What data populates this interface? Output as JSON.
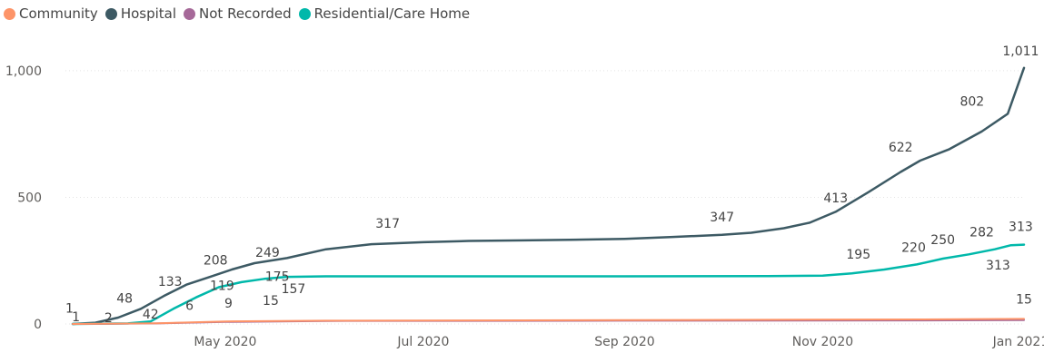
{
  "legend": {
    "items": [
      {
        "label": "Community",
        "color": "#fd9468"
      },
      {
        "label": "Hospital",
        "color": "#3d5a64"
      },
      {
        "label": "Not Recorded",
        "color": "#a66999"
      },
      {
        "label": "Residential/Care Home",
        "color": "#00b8aa"
      }
    ]
  },
  "chart_data": {
    "type": "line",
    "x_ticks": [
      "May 2020",
      "Jul 2020",
      "Sep 2020",
      "Nov 2020",
      "Jan 2021"
    ],
    "y_ticks": [
      "0",
      "500",
      "1,000"
    ],
    "ylim": [
      0,
      1100
    ],
    "xlim": [
      "2020-03-15",
      "2021-01-02"
    ],
    "grid": true,
    "series": [
      {
        "name": "Hospital",
        "color": "#3d5a64",
        "points": [
          [
            "2020-03-15",
            0
          ],
          [
            "2020-03-22",
            5
          ],
          [
            "2020-03-29",
            25
          ],
          [
            "2020-04-05",
            60
          ],
          [
            "2020-04-12",
            110
          ],
          [
            "2020-04-19",
            155
          ],
          [
            "2020-04-26",
            185
          ],
          [
            "2020-05-03",
            215
          ],
          [
            "2020-05-10",
            240
          ],
          [
            "2020-05-20",
            260
          ],
          [
            "2020-06-01",
            295
          ],
          [
            "2020-06-15",
            315
          ],
          [
            "2020-07-01",
            323
          ],
          [
            "2020-07-15",
            328
          ],
          [
            "2020-08-01",
            330
          ],
          [
            "2020-08-15",
            332
          ],
          [
            "2020-09-01",
            336
          ],
          [
            "2020-09-15",
            343
          ],
          [
            "2020-10-01",
            352
          ],
          [
            "2020-10-10",
            360
          ],
          [
            "2020-10-20",
            378
          ],
          [
            "2020-10-28",
            400
          ],
          [
            "2020-11-05",
            443
          ],
          [
            "2020-11-15",
            520
          ],
          [
            "2020-11-25",
            600
          ],
          [
            "2020-12-01",
            645
          ],
          [
            "2020-12-10",
            690
          ],
          [
            "2020-12-20",
            760
          ],
          [
            "2020-12-28",
            830
          ],
          [
            "2021-01-02",
            1011
          ]
        ]
      },
      {
        "name": "Residential/Care Home",
        "color": "#00b8aa",
        "points": [
          [
            "2020-03-15",
            0
          ],
          [
            "2020-04-01",
            2
          ],
          [
            "2020-04-08",
            10
          ],
          [
            "2020-04-15",
            60
          ],
          [
            "2020-04-22",
            105
          ],
          [
            "2020-04-29",
            145
          ],
          [
            "2020-05-06",
            165
          ],
          [
            "2020-05-13",
            178
          ],
          [
            "2020-05-20",
            186
          ],
          [
            "2020-06-01",
            188
          ],
          [
            "2020-07-01",
            188
          ],
          [
            "2020-09-01",
            188
          ],
          [
            "2020-10-15",
            189
          ],
          [
            "2020-11-01",
            191
          ],
          [
            "2020-11-10",
            200
          ],
          [
            "2020-11-20",
            215
          ],
          [
            "2020-11-30",
            235
          ],
          [
            "2020-12-08",
            258
          ],
          [
            "2020-12-16",
            275
          ],
          [
            "2020-12-24",
            295
          ],
          [
            "2020-12-29",
            311
          ],
          [
            "2021-01-02",
            313
          ]
        ]
      },
      {
        "name": "Not Recorded",
        "color": "#a66999",
        "points": [
          [
            "2020-03-15",
            0
          ],
          [
            "2020-04-10",
            2
          ],
          [
            "2020-05-01",
            8
          ],
          [
            "2020-06-01",
            12
          ],
          [
            "2020-09-01",
            13
          ],
          [
            "2020-12-01",
            14
          ],
          [
            "2021-01-02",
            15
          ]
        ]
      },
      {
        "name": "Community",
        "color": "#fd9468",
        "points": [
          [
            "2020-03-15",
            0
          ],
          [
            "2020-04-10",
            3
          ],
          [
            "2020-05-01",
            10
          ],
          [
            "2020-06-01",
            13
          ],
          [
            "2020-09-01",
            15
          ],
          [
            "2020-12-01",
            18
          ],
          [
            "2021-01-02",
            20
          ]
        ]
      }
    ],
    "data_labels": [
      {
        "text": "1",
        "x": "2020-03-14",
        "y": 45
      },
      {
        "text": "1",
        "x": "2020-03-16",
        "y": 10
      },
      {
        "text": "2",
        "x": "2020-03-26",
        "y": 8
      },
      {
        "text": "48",
        "x": "2020-03-31",
        "y": 85
      },
      {
        "text": "42",
        "x": "2020-04-08",
        "y": 22
      },
      {
        "text": "133",
        "x": "2020-04-14",
        "y": 150
      },
      {
        "text": "6",
        "x": "2020-04-20",
        "y": 55
      },
      {
        "text": "208",
        "x": "2020-04-28",
        "y": 235
      },
      {
        "text": "119",
        "x": "2020-04-30",
        "y": 135
      },
      {
        "text": "9",
        "x": "2020-05-02",
        "y": 65
      },
      {
        "text": "249",
        "x": "2020-05-14",
        "y": 265
      },
      {
        "text": "175",
        "x": "2020-05-17",
        "y": 170
      },
      {
        "text": "15",
        "x": "2020-05-15",
        "y": 75
      },
      {
        "text": "157",
        "x": "2020-05-22",
        "y": 122
      },
      {
        "text": "317",
        "x": "2020-06-20",
        "y": 380
      },
      {
        "text": "347",
        "x": "2020-10-01",
        "y": 405
      },
      {
        "text": "413",
        "x": "2020-11-05",
        "y": 480
      },
      {
        "text": "195",
        "x": "2020-11-12",
        "y": 258
      },
      {
        "text": "622",
        "x": "2020-11-25",
        "y": 680
      },
      {
        "text": "220",
        "x": "2020-11-29",
        "y": 285
      },
      {
        "text": "250",
        "x": "2020-12-08",
        "y": 315
      },
      {
        "text": "802",
        "x": "2020-12-17",
        "y": 862
      },
      {
        "text": "282",
        "x": "2020-12-20",
        "y": 345
      },
      {
        "text": "1,011",
        "x": "2021-01-01",
        "y": 1060
      },
      {
        "text": "313",
        "x": "2021-01-01",
        "y": 368
      },
      {
        "text": "313",
        "x": "2020-12-25",
        "y": 215
      },
      {
        "text": "15",
        "x": "2021-01-02",
        "y": 80
      }
    ]
  }
}
